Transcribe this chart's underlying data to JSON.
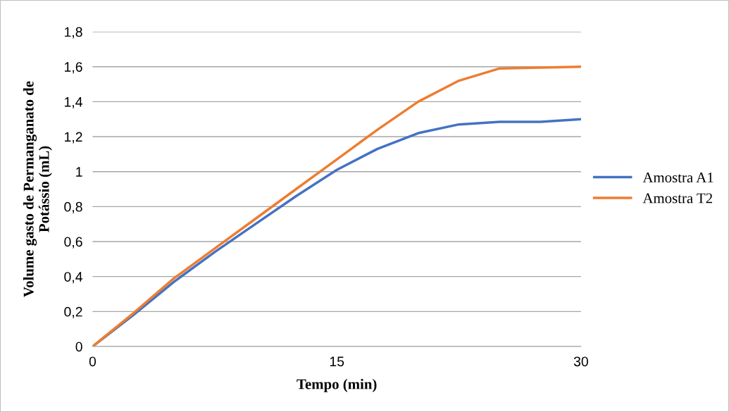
{
  "chart_data": {
    "type": "line",
    "xlabel": "Tempo (min)",
    "ylabel": "Volume gasto de Permanganato de\nPotássio (mL)",
    "x": [
      0,
      2.5,
      5,
      7.5,
      10,
      12.5,
      15,
      17.5,
      20,
      22.5,
      25,
      27.5,
      30
    ],
    "series": [
      {
        "name": "Amostra A1",
        "color": "#4472c4",
        "values": [
          0,
          0.18,
          0.37,
          0.54,
          0.7,
          0.86,
          1.01,
          1.13,
          1.22,
          1.27,
          1.285,
          1.285,
          1.3
        ]
      },
      {
        "name": "Amostra T2",
        "color": "#ed7d31",
        "values": [
          0,
          0.19,
          0.39,
          0.56,
          0.73,
          0.9,
          1.07,
          1.24,
          1.4,
          1.52,
          1.59,
          1.595,
          1.6
        ]
      }
    ],
    "xlim": [
      0,
      30
    ],
    "xticks": [
      0,
      15,
      30
    ],
    "ylim": [
      0,
      1.8
    ],
    "yticks": [
      0,
      {
        "value": 0.2,
        "label": "0,2"
      },
      {
        "value": 0.4,
        "label": "0,4"
      },
      {
        "value": 0.6,
        "label": "0,6"
      },
      {
        "value": 0.8,
        "label": "0,8"
      },
      1,
      {
        "value": 1.2,
        "label": "1,2"
      },
      {
        "value": 1.4,
        "label": "1,4"
      },
      {
        "value": 1.6,
        "label": "1,6"
      },
      {
        "value": 1.8,
        "label": "1,8"
      }
    ],
    "grid": "y",
    "legend": "right",
    "marker": "none",
    "line_style": "solid"
  }
}
